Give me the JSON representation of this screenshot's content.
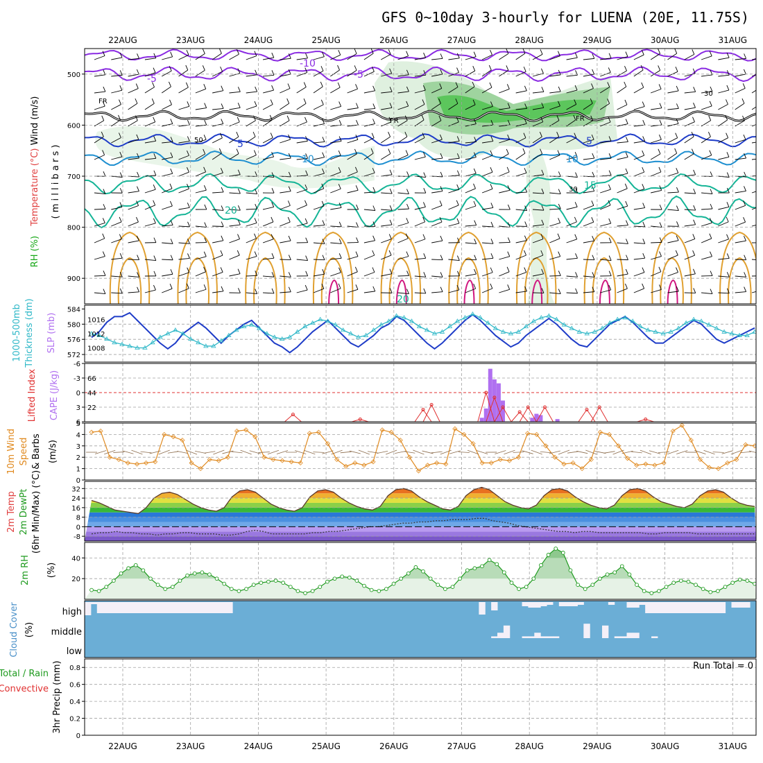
{
  "title": "GFS 0~10day 3-hourly for LUENA (20E, 11.75S)",
  "colors": {
    "purple": "#8a2be2",
    "blue": "#1e3cc8",
    "lightblue": "#1e8fd0",
    "teal": "#14b496",
    "orange": "#e0a030",
    "magenta": "#d01880",
    "cyan": "#30b8c8",
    "cape": "#b070f0",
    "li": "#e03030",
    "wind": "#e08a20",
    "rh2m": "#1e9a1e",
    "cloud": "#6baed6"
  },
  "chart_data": [
    {
      "panel": "upper-air",
      "type": "contour",
      "dates": [
        "22AUG",
        "23AUG",
        "24AUG",
        "25AUG",
        "26AUG",
        "27AUG",
        "28AUG",
        "29AUG",
        "30AUG",
        "31AUG"
      ],
      "ylabel_parts": [
        "Wind (m/s)",
        "Temperature (°C)",
        "RH (%)",
        "( m i l l i b a r s )"
      ],
      "yticks": [
        "500",
        "600",
        "700",
        "800",
        "900"
      ],
      "ylim": [
        950,
        450
      ],
      "temp_contours": [
        {
          "value": -10,
          "label": "-10",
          "base": 463,
          "amp": 8,
          "color_key": "purple"
        },
        {
          "value": -5,
          "label": "-5",
          "base": 500,
          "amp": 10,
          "color_key": "purple"
        },
        {
          "value": 0,
          "label": "FR",
          "base": 582,
          "amp": 7,
          "color_key": "black"
        },
        {
          "value": 5,
          "label": "5",
          "base": 630,
          "amp": 9,
          "color_key": "blue"
        },
        {
          "value": 10,
          "label": "10",
          "base": 665,
          "amp": 10,
          "color_key": "lightblue"
        },
        {
          "value": 15,
          "label": "15",
          "base": 715,
          "amp": 14,
          "color_key": "teal"
        },
        {
          "value": 20,
          "label": "20",
          "base": 770,
          "amp": 22,
          "color_key": "teal"
        }
      ],
      "other_labels": [
        "30",
        "50",
        "20"
      ]
    },
    {
      "panel": "thickness-slp",
      "type": "line",
      "ylabel_left": [
        "1000-500mb",
        "Thickness (dm)"
      ],
      "ylabel_right": "SLP (mb)",
      "yticks_thickness": [
        "572",
        "576",
        "580",
        "584"
      ],
      "yticks_slp": [
        "1008",
        "1012",
        "1016"
      ],
      "series": [
        {
          "name": "Thickness",
          "color_key": "blue",
          "values": [
            576.5,
            578,
            580.5,
            582,
            582,
            583,
            581,
            579,
            577,
            575,
            573.5,
            575,
            577.5,
            579,
            580.5,
            579,
            577,
            575,
            577,
            578.5,
            580,
            581,
            579,
            577,
            575,
            574,
            572.5,
            574,
            576,
            578,
            579.5,
            581,
            579,
            577,
            575,
            574,
            575.5,
            577,
            579,
            580,
            582,
            581,
            579,
            577,
            575,
            573.5,
            575,
            577,
            579,
            581,
            582.5,
            581,
            579,
            577,
            575.5,
            574,
            575,
            577,
            578.5,
            580,
            581.5,
            580,
            578,
            576,
            574.5,
            574,
            576,
            578,
            580,
            581,
            582,
            580.5,
            578.5,
            576.5,
            575,
            575,
            576.5,
            578,
            579.5,
            581,
            580,
            578,
            576,
            575,
            576,
            577,
            578,
            579
          ]
        },
        {
          "name": "SLP",
          "color_key": "cyan",
          "values": [
            1012,
            1011.5,
            1010.5,
            1009.5,
            1009,
            1008.5,
            1008,
            1008,
            1009.5,
            1011,
            1012,
            1013,
            1012,
            1010.5,
            1009.5,
            1008.5,
            1008.5,
            1010,
            1011.5,
            1013,
            1014,
            1014.5,
            1013.5,
            1012,
            1011,
            1010.5,
            1011,
            1012.5,
            1014,
            1015,
            1016,
            1015.5,
            1014.5,
            1013,
            1012,
            1011,
            1011.5,
            1013,
            1014.5,
            1015.5,
            1017,
            1016.5,
            1015.5,
            1014,
            1013,
            1012,
            1012.5,
            1014,
            1015.5,
            1016.5,
            1017.5,
            1016.5,
            1015,
            1013.5,
            1012.5,
            1012,
            1012.5,
            1014,
            1015.5,
            1016.5,
            1017,
            1016,
            1014.5,
            1013.5,
            1012.5,
            1012,
            1012.5,
            1013.5,
            1015,
            1016,
            1016.5,
            1015.5,
            1014,
            1013,
            1012.5,
            1012,
            1012.5,
            1013.5,
            1015,
            1016,
            1015.5,
            1014.5,
            1013.5,
            1012.5,
            1012,
            1011.5,
            1011.5,
            1012.5
          ]
        }
      ]
    },
    {
      "panel": "cape-li",
      "type": "bar+line",
      "ylabel_left": "Lifted Index",
      "ylabel_right": "CAPE (J/kg)",
      "yticks_li": [
        "-6",
        "-3",
        "0",
        "3",
        "6"
      ],
      "yticks_cape": [
        "22",
        "44",
        "66"
      ],
      "cape_bars": [
        {
          "x": 46.5,
          "value": 6
        },
        {
          "x": 47,
          "value": 20
        },
        {
          "x": 47.5,
          "value": 80
        },
        {
          "x": 48,
          "value": 64
        },
        {
          "x": 48.5,
          "value": 58
        },
        {
          "x": 49,
          "value": 32
        },
        {
          "x": 52.5,
          "value": 6
        },
        {
          "x": 53,
          "value": 12
        },
        {
          "x": 53.5,
          "value": 10
        },
        {
          "x": 55.5,
          "value": 4
        }
      ],
      "li_peaks": [
        {
          "x": 24,
          "value": 4.5
        },
        {
          "x": 32,
          "value": 5.5
        },
        {
          "x": 39.5,
          "value": 3.5
        },
        {
          "x": 40.5,
          "value": 2.5
        },
        {
          "x": 47,
          "value": 0
        },
        {
          "x": 48,
          "value": 1
        },
        {
          "x": 49,
          "value": 3
        },
        {
          "x": 51,
          "value": 4
        },
        {
          "x": 52,
          "value": 3
        },
        {
          "x": 54,
          "value": 3
        },
        {
          "x": 59,
          "value": 3.5
        },
        {
          "x": 60.5,
          "value": 3
        },
        {
          "x": 66,
          "value": 5.5
        }
      ]
    },
    {
      "panel": "wind10m",
      "type": "line",
      "ylabel": [
        "10m Wind",
        "Speed",
        "& Barbs",
        "(m/s)"
      ],
      "yticks": [
        "0",
        "1",
        "2",
        "3",
        "4",
        "5"
      ],
      "series": [
        {
          "name": "10m Wind Speed",
          "color_key": "wind",
          "values": [
            4.2,
            4.3,
            2,
            1.8,
            1.5,
            1.4,
            1.5,
            1.6,
            4,
            3.8,
            3.5,
            1.5,
            1,
            1.8,
            1.7,
            2,
            4.3,
            4.4,
            3.8,
            2,
            1.8,
            1.7,
            1.6,
            1.5,
            4.1,
            4.2,
            3.2,
            1.8,
            1.2,
            1.5,
            1.3,
            1.6,
            4.4,
            4.2,
            3.5,
            2,
            0.8,
            1.3,
            1.5,
            1.4,
            4.5,
            4,
            3.2,
            1.5,
            1.5,
            1.8,
            1.7,
            2,
            4.1,
            4,
            3,
            2,
            1.4,
            1.5,
            1,
            1.8,
            4.2,
            4,
            3,
            1.9,
            1.3,
            1.4,
            1.3,
            1.5,
            4.3,
            4.8,
            3.5,
            1.8,
            1.1,
            1,
            1.5,
            1.8,
            3.1,
            3
          ]
        }
      ]
    },
    {
      "panel": "temp2m",
      "type": "area",
      "ylabel": [
        "2m Temp",
        "2m DewPt",
        "(6hr Min/Max) (°C)"
      ],
      "yticks": [
        "-8",
        "0",
        "8",
        "16",
        "24",
        "32"
      ],
      "series": [
        {
          "name": "2m Temp",
          "values": [
            22,
            20,
            17,
            14,
            13,
            12,
            11,
            16,
            24,
            28,
            29,
            27,
            23,
            19,
            16,
            14,
            13,
            16,
            25,
            30,
            31,
            29,
            24,
            19,
            16,
            14,
            13,
            16,
            25,
            30,
            31,
            29,
            24,
            20,
            17,
            15,
            14,
            17,
            26,
            31,
            32,
            30,
            25,
            21,
            18,
            15,
            14,
            17,
            26,
            31,
            33,
            31,
            26,
            21,
            18,
            16,
            15,
            18,
            26,
            31,
            32,
            30,
            25,
            21,
            18,
            16,
            15,
            18,
            26,
            31,
            32,
            30,
            25,
            21,
            19,
            17,
            16,
            19,
            26,
            30,
            31,
            29,
            24,
            20,
            18,
            17
          ]
        },
        {
          "name": "2m DewPt",
          "values": [
            -6,
            -5,
            -5,
            -4,
            -5,
            -5,
            -6,
            -6,
            -7,
            -6,
            -6,
            -5,
            -5,
            -6,
            -6,
            -6,
            -7,
            -7,
            -6,
            -4,
            -3,
            -4,
            -6,
            -6,
            -6,
            -6,
            -6,
            -5,
            -5,
            -4,
            -4,
            -3,
            -2,
            -1,
            0,
            0,
            1,
            2,
            3,
            3,
            4,
            4,
            5,
            5,
            6,
            6,
            6,
            7,
            7,
            5,
            4,
            3,
            1,
            0,
            -1,
            -2,
            -3,
            -4,
            -4,
            -5,
            -4,
            -4,
            -5,
            -5,
            -5,
            -5,
            -5,
            -5,
            -6,
            -6,
            -5,
            -5,
            -5,
            -5,
            -6,
            -6,
            -6,
            -6,
            -6,
            -6,
            -6,
            -6
          ]
        }
      ]
    },
    {
      "panel": "rh2m",
      "type": "area",
      "ylabel": [
        "2m RH",
        "(%)"
      ],
      "yticks": [
        "20",
        "40"
      ],
      "series": [
        {
          "name": "2m RH",
          "color_key": "rh2m",
          "values": [
            9,
            8,
            12,
            18,
            25,
            30,
            33,
            28,
            20,
            14,
            10,
            12,
            18,
            23,
            25,
            26,
            24,
            20,
            15,
            10,
            8,
            10,
            14,
            16,
            17,
            18,
            16,
            12,
            8,
            6,
            8,
            12,
            17,
            20,
            22,
            21,
            18,
            13,
            9,
            8,
            10,
            15,
            20,
            25,
            31,
            27,
            20,
            14,
            10,
            12,
            20,
            28,
            30,
            32,
            38,
            34,
            26,
            16,
            10,
            12,
            20,
            33,
            43,
            49,
            45,
            28,
            14,
            10,
            14,
            20,
            24,
            26,
            32,
            24,
            14,
            8,
            6,
            8,
            12,
            16,
            18,
            17,
            14,
            10,
            7,
            8,
            12,
            16,
            19,
            18,
            15
          ]
        }
      ]
    },
    {
      "panel": "cloud",
      "type": "bar",
      "ylabel": [
        "Cloud Cover",
        "(%)"
      ],
      "levels": [
        "high",
        "middle",
        "low"
      ],
      "high_clear": [
        0.95,
        0.15,
        0.8,
        0.8,
        0.8,
        0.8,
        0.8,
        0.8,
        0.8,
        0.8,
        0.8,
        0.8,
        0.8,
        0.8,
        0.8,
        0.8,
        0.8,
        0.8,
        0.8,
        0.8,
        0.8,
        0.8,
        0.8,
        0.8,
        0,
        0,
        0,
        0,
        0,
        0,
        0,
        0,
        0,
        0,
        0,
        0,
        0,
        0,
        0,
        0,
        0,
        0,
        0,
        0,
        0,
        0,
        0,
        0,
        0,
        0,
        0,
        0,
        0,
        0,
        0,
        0,
        0,
        0,
        0,
        0,
        0,
        0,
        0,
        0,
        0.9,
        0,
        0.6,
        0,
        0,
        0,
        0,
        0.3,
        0.4,
        0.4,
        0.3,
        0.2,
        0,
        0.3,
        0.3,
        0.3,
        0.2,
        0,
        0,
        0,
        0,
        0.2,
        0,
        0,
        0.4,
        0.4,
        0.2,
        0.8,
        0.8,
        0.8,
        0.8,
        0.8,
        0.8,
        0.8,
        0.8,
        0.8,
        0.8,
        0.8,
        0.8,
        0.8,
        0,
        0.4,
        0.4,
        0.4,
        0
      ],
      "middle_clear": [
        0,
        0,
        0,
        0,
        0,
        0,
        0,
        0,
        0,
        0,
        0,
        0,
        0,
        0,
        0,
        0,
        0,
        0,
        0,
        0,
        0,
        0,
        0,
        0,
        0,
        0,
        0,
        0,
        0,
        0,
        0,
        0,
        0,
        0,
        0,
        0,
        0,
        0,
        0,
        0,
        0,
        0,
        0,
        0,
        0,
        0,
        0,
        0,
        0,
        0,
        0,
        0,
        0,
        0,
        0,
        0,
        0,
        0,
        0,
        0,
        0,
        0,
        0,
        0,
        0,
        0,
        0.1,
        0.3,
        0.7,
        0,
        0,
        0.1,
        0.1,
        0.3,
        0.1,
        0.1,
        0.1,
        0,
        0,
        0,
        0,
        0.8,
        0,
        0,
        0.7,
        0,
        0.1,
        0.1,
        0.3,
        0.3,
        0,
        0,
        0.1,
        0,
        0,
        0,
        0,
        0,
        0,
        0,
        0,
        0,
        0,
        0,
        0,
        0,
        0,
        0,
        0,
        0,
        0
      ]
    },
    {
      "panel": "precip",
      "type": "bar",
      "ylabel_parts": [
        "Total / Rain",
        "Convective",
        "3hr Precip (mm)"
      ],
      "yticks": [
        "0",
        "0.2",
        "0.4",
        "0.6",
        "0.8"
      ],
      "run_total": "Run Total = 0"
    }
  ]
}
